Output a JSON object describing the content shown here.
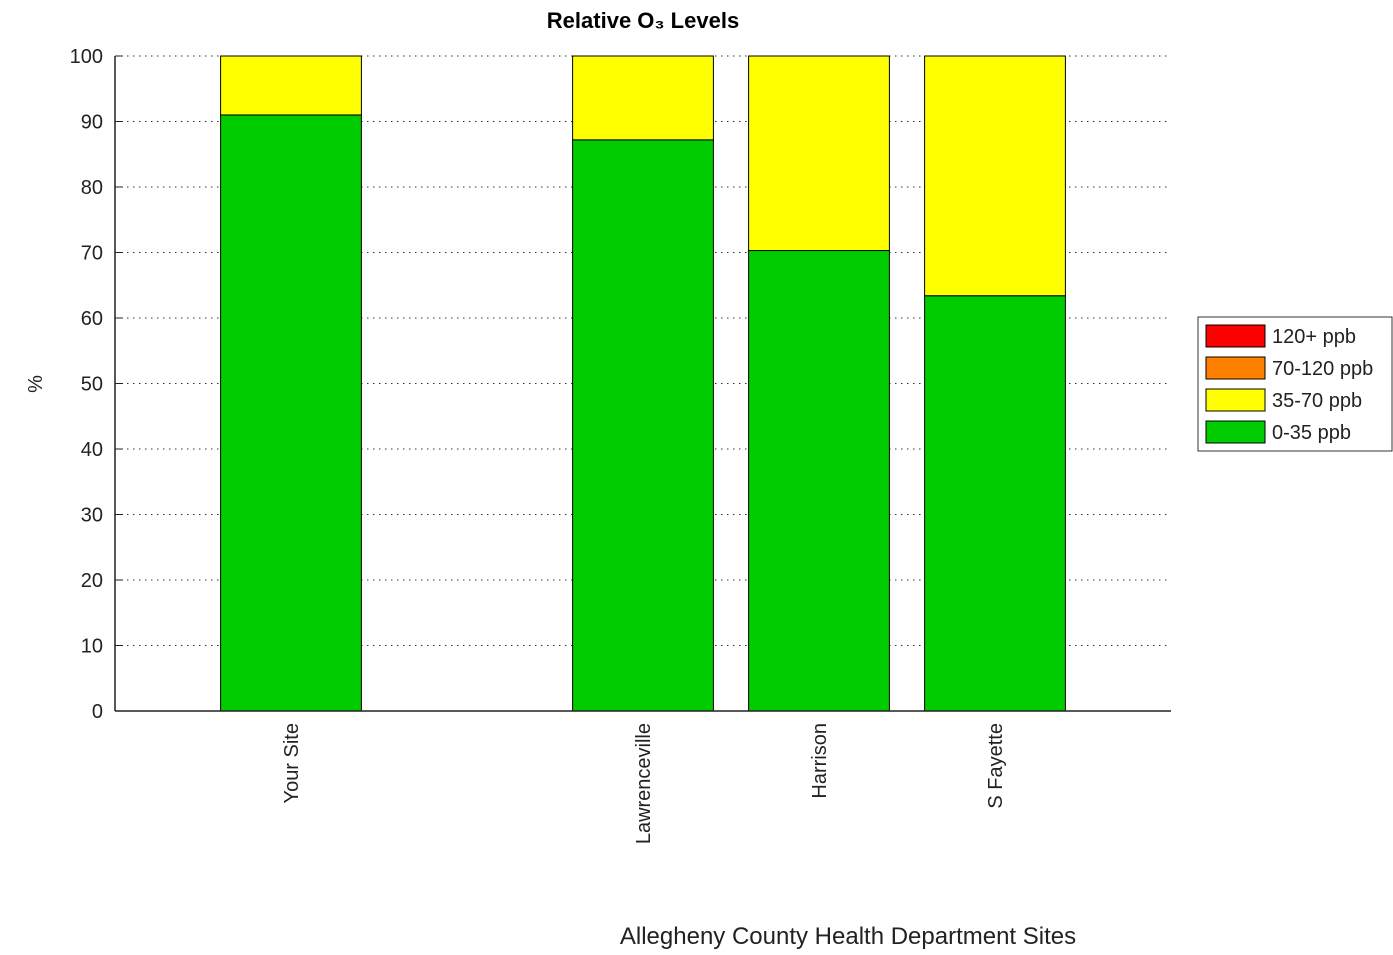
{
  "chart_data": {
    "type": "stacked_bar",
    "title": "Relative O₃ Levels",
    "x_label": "Allegheny County Health Department Sites",
    "y_label": "%",
    "categories": [
      "Your Site",
      null,
      "Lawrenceville",
      "Harrison",
      "S Fayette"
    ],
    "series": [
      {
        "name": "0-35 ppb",
        "color": "#00cc00",
        "values": [
          91,
          0,
          87.2,
          70.3,
          63.4
        ]
      },
      {
        "name": "35-70 ppb",
        "color": "#ffff00",
        "values": [
          9,
          0,
          12.8,
          29.7,
          36.6
        ]
      },
      {
        "name": "70-120 ppb",
        "color": "#ff8000",
        "values": [
          0,
          0,
          0,
          0,
          0
        ]
      },
      {
        "name": "120+ ppb",
        "color": "#ff0000",
        "values": [
          0,
          0,
          0,
          0,
          0
        ]
      }
    ],
    "xlim": [
      0,
      6
    ],
    "ylim": [
      0,
      100
    ],
    "yticks": [
      0,
      10,
      20,
      30,
      40,
      50,
      60,
      70,
      80,
      90,
      100
    ],
    "grid": true,
    "legend": "east-outside"
  }
}
